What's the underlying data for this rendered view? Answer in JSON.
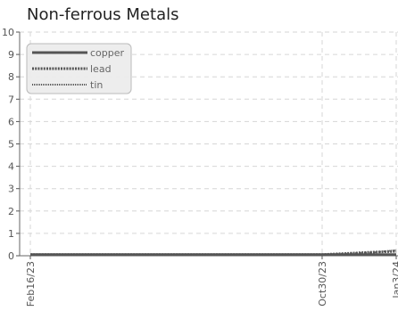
{
  "chart_data": {
    "type": "line",
    "title": "Non-ferrous Metals",
    "xlabel": "",
    "ylabel": "",
    "x_ticks": [
      "Feb16/23",
      "Oct30/23",
      "Jan3/24"
    ],
    "x_range": [
      "2023-02-16",
      "2024-01-03"
    ],
    "y_ticks": [
      0,
      1,
      2,
      3,
      4,
      5,
      6,
      7,
      8,
      9,
      10
    ],
    "ylim": [
      0,
      10
    ],
    "grid": true,
    "legend_position": "top-left",
    "series": [
      {
        "name": "copper",
        "color": "#555555",
        "dash": "solid",
        "points": [
          [
            "2023-02-16",
            0.05
          ],
          [
            "2023-10-30",
            0.05
          ],
          [
            "2024-01-03",
            0.05
          ]
        ]
      },
      {
        "name": "lead",
        "color": "#555555",
        "dash": "dotted",
        "points": [
          [
            "2023-02-16",
            0.05
          ],
          [
            "2023-10-30",
            0.05
          ],
          [
            "2023-11-20",
            0.1
          ],
          [
            "2023-12-10",
            0.15
          ],
          [
            "2024-01-03",
            0.2
          ]
        ]
      },
      {
        "name": "tin",
        "color": "#555555",
        "dash": "fine-dotted",
        "points": [
          [
            "2023-02-16",
            0.05
          ],
          [
            "2023-10-30",
            0.05
          ],
          [
            "2023-11-25",
            0.1
          ],
          [
            "2023-12-15",
            0.15
          ],
          [
            "2024-01-03",
            0.25
          ]
        ]
      }
    ]
  }
}
